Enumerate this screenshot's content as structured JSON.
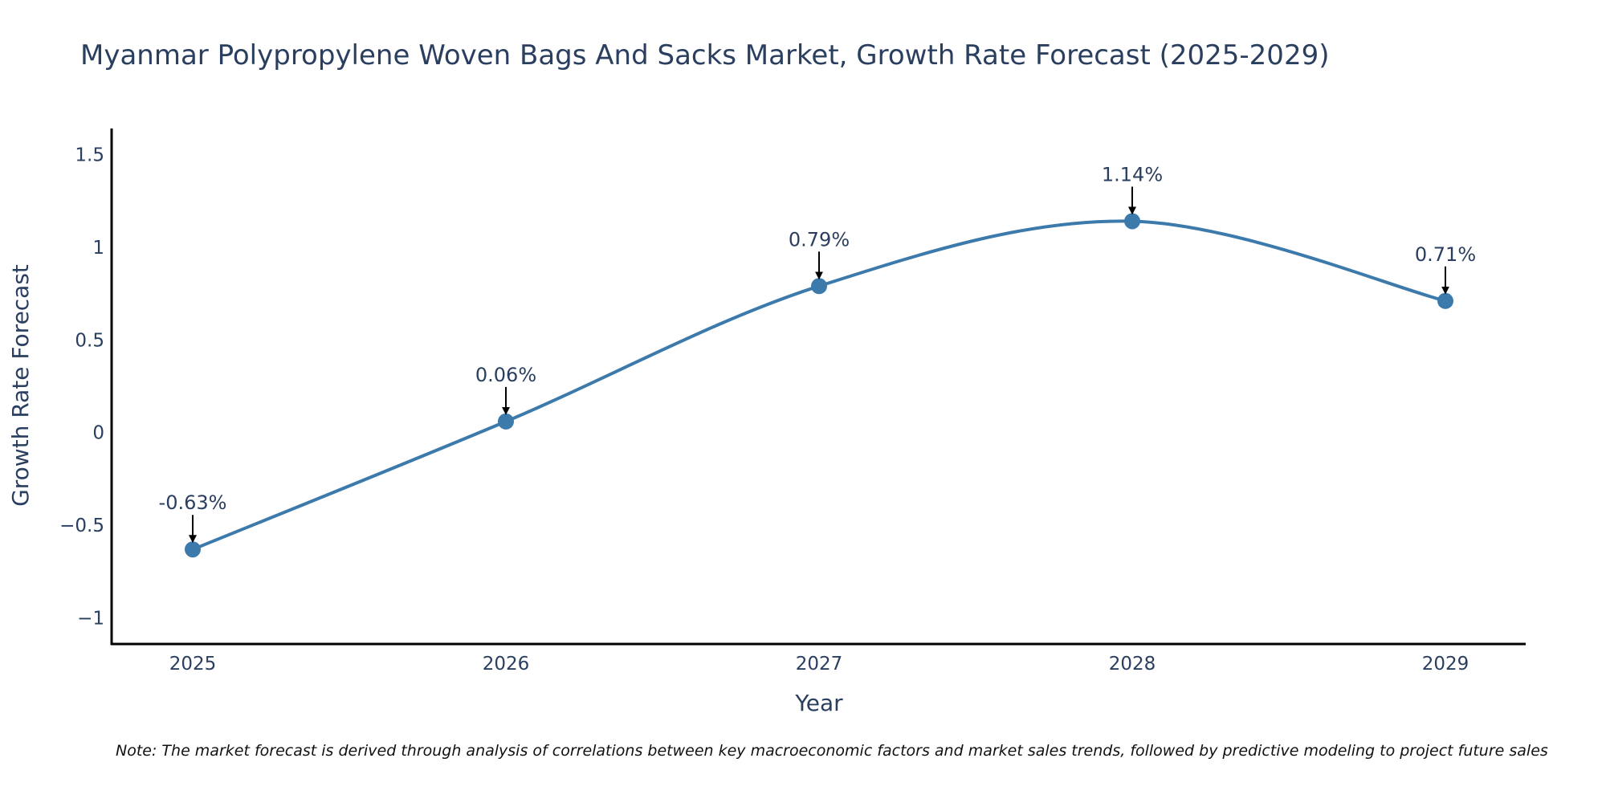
{
  "chart_data": {
    "type": "line",
    "title": "Myanmar Polypropylene Woven Bags And Sacks Market, Growth Rate Forecast (2025-2029)",
    "xlabel": "Year",
    "ylabel": "Growth Rate Forecast",
    "categories": [
      "2025",
      "2026",
      "2027",
      "2028",
      "2029"
    ],
    "series": [
      {
        "name": "Growth Rate Forecast",
        "values": [
          -0.63,
          0.06,
          0.79,
          1.14,
          0.71
        ],
        "labels": [
          "-0.63%",
          "0.06%",
          "0.79%",
          "1.14%",
          "0.71%"
        ]
      }
    ],
    "ylim": [
      -1.14,
      1.64
    ],
    "yticks": [
      -1,
      -0.5,
      0,
      0.5,
      1,
      1.5
    ],
    "ytick_labels": [
      "−1",
      "−0.5",
      "0",
      "0.5",
      "1",
      "1.5"
    ],
    "grid": false,
    "line_color": "#3d7aac",
    "marker_color": "#3d7aac",
    "note": "Note: The market forecast is derived through analysis of correlations between key macroeconomic factors and market sales trends, followed by predictive modeling to project future sales"
  }
}
